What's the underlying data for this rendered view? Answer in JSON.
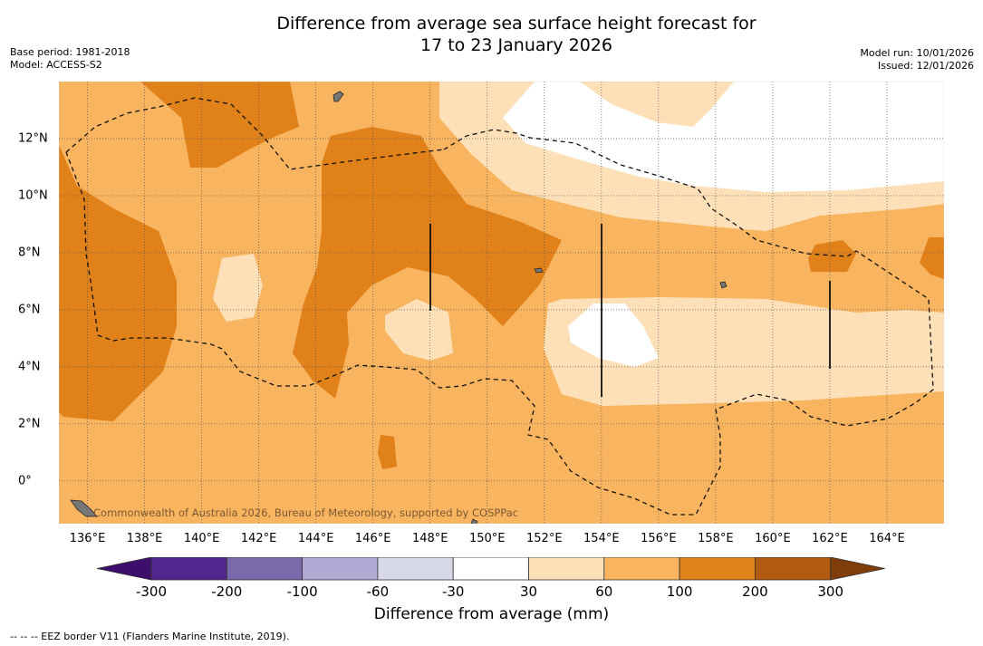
{
  "title": {
    "line1": "Difference from average sea surface height forecast for",
    "line2": "17 to 23 January 2026"
  },
  "meta": {
    "base_period": "Base period: 1981-2018",
    "model": "Model: ACCESS-S2",
    "model_run": "Model run: 10/01/2026",
    "issued": "Issued: 12/01/2026"
  },
  "map": {
    "lon_range": [
      135,
      166
    ],
    "lat_range": [
      -1.5,
      14
    ],
    "lon_ticks": [
      "136°E",
      "138°E",
      "140°E",
      "142°E",
      "144°E",
      "146°E",
      "148°E",
      "150°E",
      "152°E",
      "154°E",
      "156°E",
      "158°E",
      "160°E",
      "162°E",
      "164°E"
    ],
    "lat_ticks": [
      "12°N",
      "10°N",
      "8°N",
      "6°N",
      "4°N",
      "2°N",
      "0°"
    ],
    "attribution": "Commonwealth of Australia 2026, Bureau of Meteorology, supported by COSPPac"
  },
  "legend": {
    "title": "Difference from average (mm)",
    "labels": [
      "-300",
      "-200",
      "-100",
      "-60",
      "-30",
      "30",
      "60",
      "100",
      "200",
      "300"
    ],
    "colors": [
      "#3d0e6b",
      "#52268c",
      "#7b6aab",
      "#aeaad4",
      "#d7d8ea",
      "#ffffff",
      "#fde0b8",
      "#f9b45f",
      "#e0811a",
      "#b25a0e",
      "#7e3d0a"
    ]
  },
  "footnote": "--  --  -- EEZ border V11 (Flanders Marine Institute, 2019)."
}
